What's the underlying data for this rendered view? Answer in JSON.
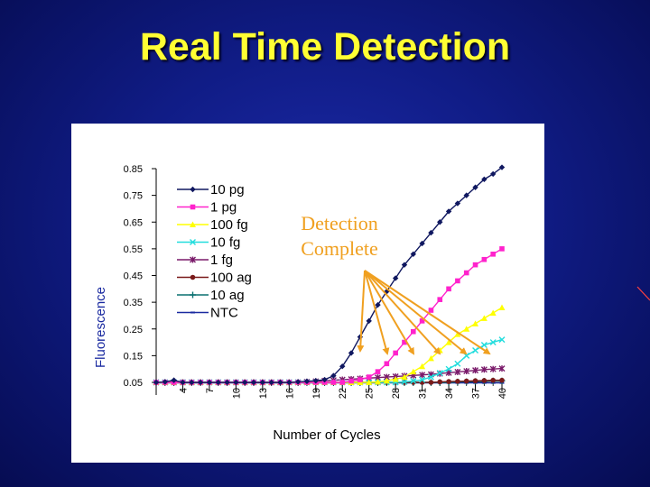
{
  "slide": {
    "title": "Real Time Detection"
  },
  "annotation": {
    "line1": "Detection",
    "line2": "Complete",
    "arrow_color": "#f0a020"
  },
  "colors": {
    "background": "#101c86",
    "title": "#ffff33",
    "panel": "#ffffff"
  },
  "chart_data": {
    "type": "line",
    "title": "",
    "xlabel": "Number of Cycles",
    "ylabel": "Fluorescence",
    "xlim": [
      1,
      40
    ],
    "ylim": [
      0.05,
      0.85
    ],
    "yticks": [
      "0.85",
      "0.75",
      "0.65",
      "0.55",
      "0.45",
      "0.35",
      "0.25",
      "0.15",
      "0.05"
    ],
    "xticks": [
      "4",
      "7",
      "10",
      "13",
      "16",
      "19",
      "22",
      "25",
      "28",
      "31",
      "34",
      "37",
      "40"
    ],
    "legend_position": "top-left",
    "grid": false,
    "series": [
      {
        "name": "10 pg",
        "color": "#101860",
        "marker": "diamond",
        "values": [
          0.05,
          0.052,
          0.058,
          0.05,
          0.05,
          0.05,
          0.05,
          0.05,
          0.05,
          0.05,
          0.05,
          0.05,
          0.05,
          0.05,
          0.05,
          0.05,
          0.052,
          0.054,
          0.056,
          0.06,
          0.075,
          0.11,
          0.16,
          0.22,
          0.28,
          0.34,
          0.39,
          0.44,
          0.49,
          0.53,
          0.57,
          0.61,
          0.65,
          0.69,
          0.72,
          0.75,
          0.78,
          0.81,
          0.83,
          0.855
        ]
      },
      {
        "name": "1 pg",
        "color": "#ff22cc",
        "marker": "square",
        "values": [
          0.05,
          0.05,
          0.05,
          0.05,
          0.05,
          0.05,
          0.05,
          0.05,
          0.05,
          0.05,
          0.05,
          0.05,
          0.05,
          0.05,
          0.05,
          0.05,
          0.05,
          0.05,
          0.05,
          0.05,
          0.05,
          0.05,
          0.055,
          0.06,
          0.07,
          0.09,
          0.12,
          0.16,
          0.2,
          0.24,
          0.28,
          0.32,
          0.36,
          0.4,
          0.43,
          0.46,
          0.49,
          0.51,
          0.53,
          0.55
        ]
      },
      {
        "name": "100 fg",
        "color": "#ffff00",
        "marker": "triangle",
        "values": [
          0.05,
          0.05,
          0.05,
          0.05,
          0.05,
          0.05,
          0.05,
          0.05,
          0.05,
          0.05,
          0.05,
          0.05,
          0.05,
          0.05,
          0.05,
          0.05,
          0.05,
          0.05,
          0.05,
          0.05,
          0.05,
          0.05,
          0.05,
          0.05,
          0.05,
          0.052,
          0.056,
          0.062,
          0.07,
          0.09,
          0.11,
          0.14,
          0.17,
          0.2,
          0.23,
          0.25,
          0.27,
          0.29,
          0.31,
          0.33
        ]
      },
      {
        "name": "10 fg",
        "color": "#22dddd",
        "marker": "x",
        "values": [
          0.05,
          0.05,
          0.05,
          0.05,
          0.05,
          0.05,
          0.05,
          0.05,
          0.05,
          0.05,
          0.05,
          0.05,
          0.05,
          0.05,
          0.05,
          0.05,
          0.05,
          0.05,
          0.05,
          0.05,
          0.05,
          0.05,
          0.05,
          0.05,
          0.05,
          0.05,
          0.05,
          0.05,
          0.052,
          0.055,
          0.06,
          0.07,
          0.085,
          0.1,
          0.12,
          0.15,
          0.17,
          0.19,
          0.2,
          0.21
        ]
      },
      {
        "name": "1 fg",
        "color": "#7a1a6a",
        "marker": "star",
        "values": [
          0.05,
          0.05,
          0.05,
          0.05,
          0.05,
          0.05,
          0.05,
          0.05,
          0.05,
          0.05,
          0.05,
          0.05,
          0.05,
          0.05,
          0.05,
          0.05,
          0.05,
          0.052,
          0.054,
          0.056,
          0.058,
          0.06,
          0.062,
          0.064,
          0.066,
          0.068,
          0.07,
          0.072,
          0.074,
          0.076,
          0.078,
          0.08,
          0.083,
          0.086,
          0.089,
          0.092,
          0.095,
          0.098,
          0.1,
          0.102
        ]
      },
      {
        "name": "100 ag",
        "color": "#7a1a1a",
        "marker": "circle",
        "values": [
          0.05,
          0.05,
          0.05,
          0.05,
          0.05,
          0.05,
          0.05,
          0.05,
          0.05,
          0.05,
          0.05,
          0.05,
          0.05,
          0.05,
          0.05,
          0.05,
          0.05,
          0.05,
          0.05,
          0.05,
          0.05,
          0.05,
          0.05,
          0.05,
          0.05,
          0.05,
          0.05,
          0.05,
          0.05,
          0.05,
          0.05,
          0.05,
          0.052,
          0.053,
          0.054,
          0.055,
          0.056,
          0.057,
          0.058,
          0.058
        ]
      },
      {
        "name": "10 ag",
        "color": "#0a7070",
        "marker": "plus",
        "values": [
          0.05,
          0.05,
          0.05,
          0.05,
          0.05,
          0.05,
          0.05,
          0.05,
          0.05,
          0.05,
          0.05,
          0.05,
          0.05,
          0.05,
          0.05,
          0.05,
          0.05,
          0.05,
          0.05,
          0.05,
          0.05,
          0.05,
          0.05,
          0.05,
          0.05,
          0.05,
          0.05,
          0.05,
          0.05,
          0.05,
          0.05,
          0.05,
          0.05,
          0.05,
          0.052,
          0.053,
          0.054,
          0.055,
          0.056,
          0.056
        ]
      },
      {
        "name": "NTC",
        "color": "#1a2aa0",
        "marker": "dash",
        "values": [
          0.048,
          0.048,
          0.048,
          0.048,
          0.048,
          0.048,
          0.048,
          0.048,
          0.048,
          0.048,
          0.048,
          0.048,
          0.048,
          0.048,
          0.048,
          0.048,
          0.048,
          0.048,
          0.048,
          0.048,
          0.048,
          0.048,
          0.048,
          0.048,
          0.048,
          0.048,
          0.048,
          0.048,
          0.048,
          0.048,
          0.048,
          0.048,
          0.048,
          0.048,
          0.048,
          0.048,
          0.048,
          0.048,
          0.048,
          0.048
        ]
      }
    ]
  }
}
